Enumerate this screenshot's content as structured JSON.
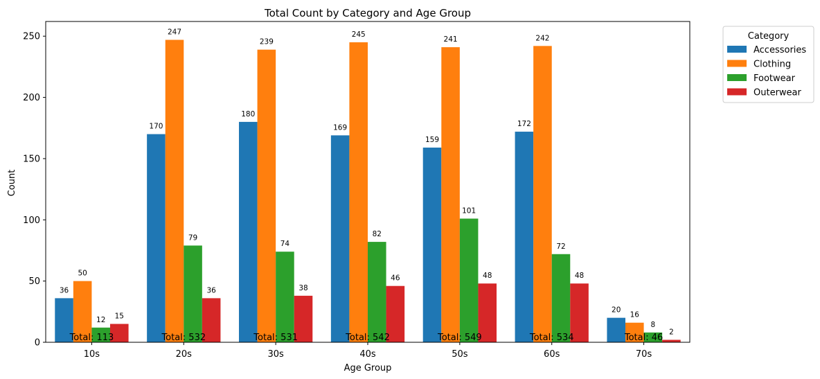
{
  "chart_data": {
    "type": "bar",
    "title": "Total Count by Category and Age Group",
    "xlabel": "Age Group",
    "ylabel": "Count",
    "ylim": [
      0,
      262
    ],
    "yticks": [
      0,
      50,
      100,
      150,
      200,
      250
    ],
    "categories": [
      "10s",
      "20s",
      "30s",
      "40s",
      "50s",
      "60s",
      "70s"
    ],
    "series": [
      {
        "name": "Accessories",
        "color": "#1f77b4",
        "values": [
          36,
          170,
          180,
          169,
          159,
          172,
          20
        ]
      },
      {
        "name": "Clothing",
        "color": "#ff7f0e",
        "values": [
          50,
          247,
          239,
          245,
          241,
          242,
          16
        ]
      },
      {
        "name": "Footwear",
        "color": "#2ca02c",
        "values": [
          12,
          79,
          74,
          82,
          101,
          72,
          8
        ]
      },
      {
        "name": "Outerwear",
        "color": "#d62728",
        "values": [
          15,
          36,
          38,
          46,
          48,
          48,
          2
        ]
      }
    ],
    "totals": [
      "Total: 113",
      "Total: 532",
      "Total: 531",
      "Total: 542",
      "Total: 549",
      "Total: 534",
      "Total: 46"
    ],
    "legend": {
      "title": "Category",
      "placement": "outside-top-right"
    },
    "grid": false
  }
}
